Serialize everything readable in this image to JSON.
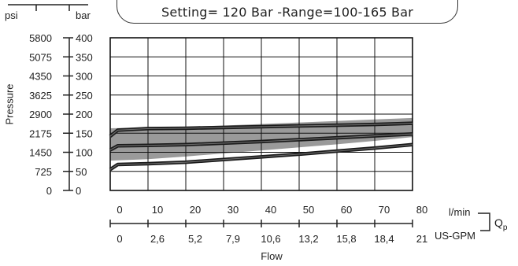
{
  "banner": {
    "text": "Setting= 120 Bar -Range=100-165 Bar"
  },
  "units": {
    "psi": "psi",
    "bar": "bar",
    "lpm": "l/min",
    "usgpm": "US-GPM",
    "qp": "Q",
    "qp_sub": "p"
  },
  "chart_data": {
    "type": "line",
    "ylabel": "Pressure",
    "xlabel": "Flow",
    "x_primary": {
      "unit": "l/min",
      "range": [
        0,
        80
      ],
      "ticks": [
        "0",
        "10",
        "20",
        "30",
        "40",
        "50",
        "60",
        "70",
        "80"
      ]
    },
    "x_secondary": {
      "unit": "US-GPM",
      "ticks": [
        "0",
        "2,6",
        "5,2",
        "7,9",
        "10,6",
        "13,2",
        "15,8",
        "18,4",
        "21"
      ]
    },
    "y_bar": {
      "unit": "bar",
      "range": [
        0,
        400
      ],
      "ticks": [
        "0",
        "50",
        "100",
        "150",
        "200",
        "250",
        "300",
        "350",
        "400"
      ]
    },
    "y_psi": {
      "unit": "psi",
      "ticks": [
        "0",
        "725",
        "1450",
        "2175",
        "2900",
        "3625",
        "4350",
        "5075",
        "5800"
      ]
    },
    "grid": true,
    "band": {
      "x": [
        0,
        10,
        20,
        30,
        40,
        50,
        60,
        70,
        80
      ],
      "upper": [
        163,
        165,
        167,
        170,
        174,
        178,
        182,
        186,
        190
      ],
      "lower": [
        78,
        82,
        89,
        97,
        105,
        113,
        121,
        130,
        140
      ]
    },
    "series": [
      {
        "x": [
          0,
          2,
          10,
          20,
          30,
          40,
          50,
          60,
          70,
          80
        ],
        "values": [
          142,
          158,
          162,
          163,
          165,
          167,
          169,
          171,
          173,
          176
        ]
      },
      {
        "x": [
          0,
          2,
          10,
          20,
          30,
          40,
          50,
          60,
          70,
          80
        ],
        "values": [
          106,
          117,
          118,
          120,
          124,
          128,
          133,
          138,
          143,
          148
        ]
      },
      {
        "x": [
          0,
          2,
          10,
          20,
          30,
          40,
          50,
          60,
          70,
          80
        ],
        "values": [
          55,
          68,
          70,
          74,
          81,
          88,
          95,
          103,
          111,
          120
        ]
      }
    ]
  }
}
